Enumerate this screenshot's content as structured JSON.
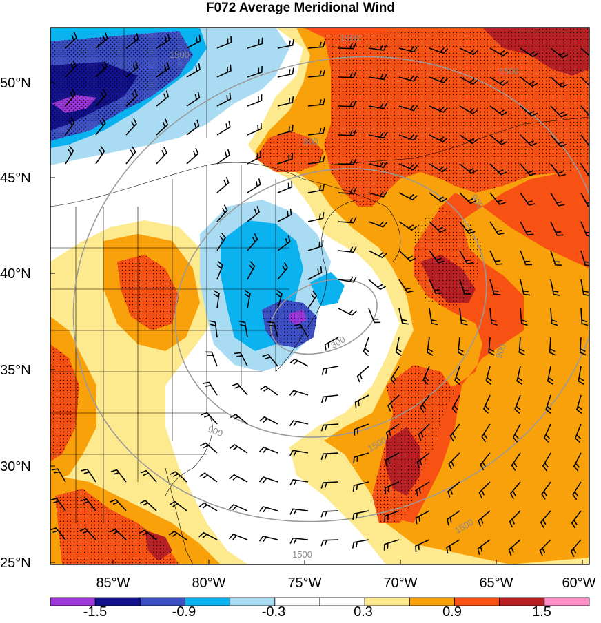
{
  "title": "F072 Average Meridional Wind",
  "lat_labels": [
    "50°N",
    "45°N",
    "40°N",
    "35°N",
    "30°N",
    "25°N"
  ],
  "lon_labels": [
    "85°W",
    "80°W",
    "75°W",
    "70°W",
    "65°W",
    "60°W"
  ],
  "colorbar": {
    "colors": [
      "#9b37d9",
      "#13128e",
      "#3d4fc4",
      "#0ab2f0",
      "#a9dcf3",
      "#ffffff",
      "#ffffff",
      "#fde98e",
      "#f9a10b",
      "#f75214",
      "#b82024",
      "#ff8fc8"
    ],
    "tick_labels": [
      "-1.5",
      "-0.9",
      "-0.3",
      "0.3",
      "0.9",
      "1.5"
    ]
  },
  "contour_labels": [
    "1500",
    "1500",
    "1500",
    "900",
    "900",
    "900",
    "900",
    "300",
    "1500",
    "1500",
    "1500"
  ],
  "colors": {
    "neg_strong": "#3d4fc4",
    "neg_dark": "#13128e",
    "neg_mid": "#0ab2f0",
    "neg_light": "#a9dcf3",
    "neutral": "#ffffff",
    "pos_light": "#fde98e",
    "pos_mid": "#f9a10b",
    "pos_strong": "#f75214",
    "pos_dark": "#b82024",
    "min": "#9b37d9",
    "max": "#ff8fc8"
  }
}
